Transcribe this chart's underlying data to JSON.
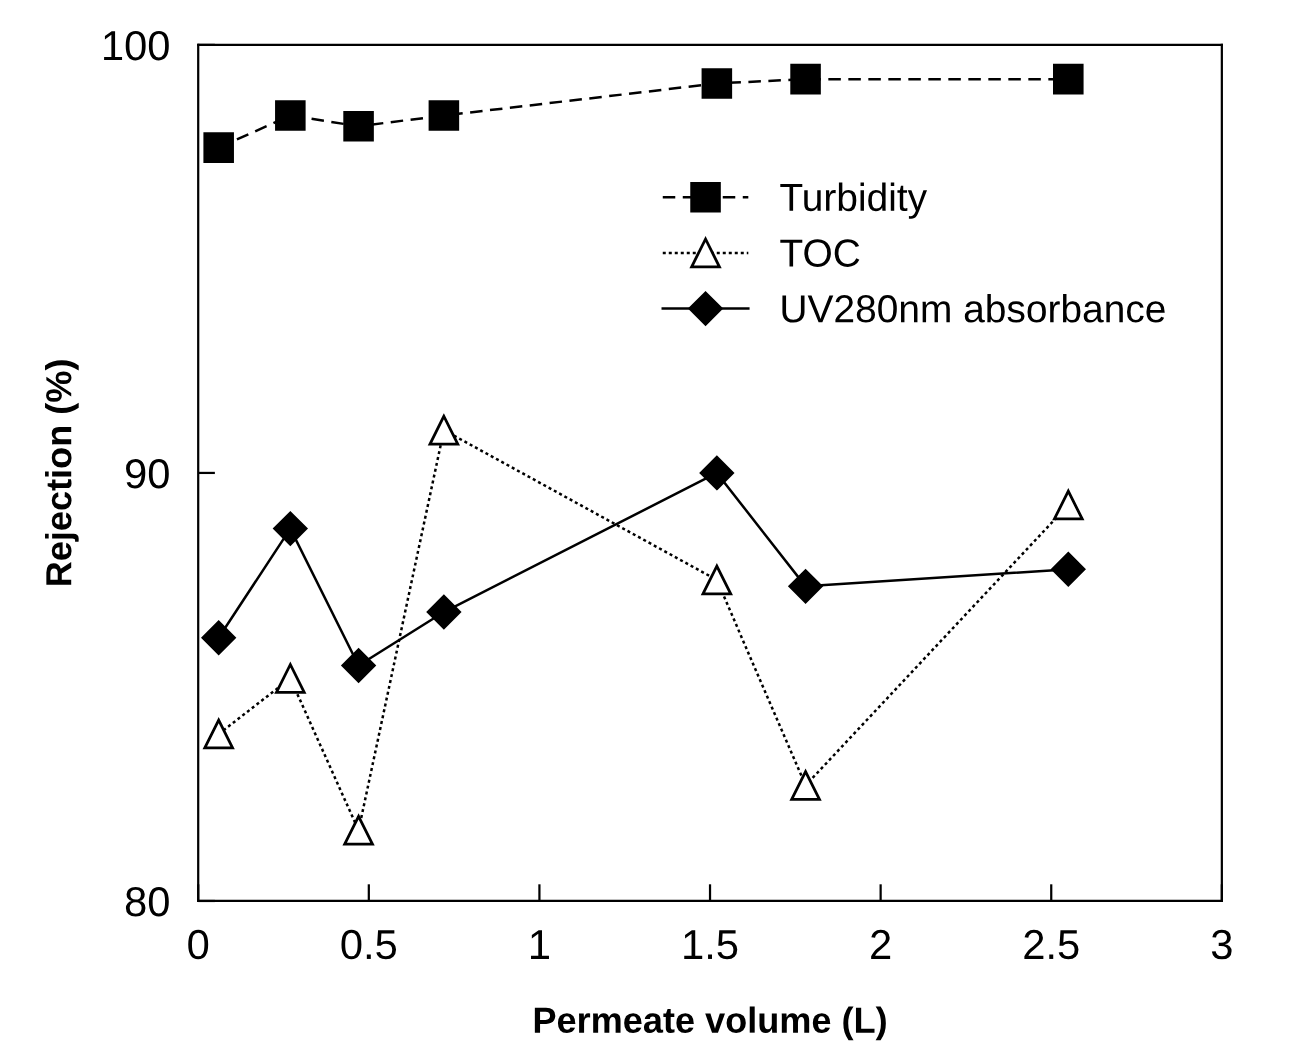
{
  "chart_data": {
    "type": "line",
    "xlabel": "Permeate volume (L)",
    "ylabel": "Rejection (%)",
    "x": [
      0.06,
      0.27,
      0.47,
      0.72,
      1.52,
      1.78,
      2.55
    ],
    "series": [
      {
        "name": "Turbidity",
        "color": "#000000",
        "values": [
          97.6,
          98.35,
          98.1,
          98.35,
          99.1,
          99.2,
          99.2
        ],
        "marker": "square",
        "line_style": "dashed"
      },
      {
        "name": "TOC",
        "color": "#000000",
        "values": [
          83.9,
          85.2,
          81.65,
          91.0,
          87.5,
          82.7,
          89.25
        ],
        "marker": "triangle",
        "line_style": "dotted"
      },
      {
        "name": "UV280nm absorbance",
        "color": "#000000",
        "values": [
          86.15,
          88.7,
          85.5,
          86.75,
          90.0,
          87.35,
          87.75
        ],
        "marker": "diamond",
        "line_style": "solid"
      }
    ],
    "xlim": [
      0,
      3
    ],
    "ylim": [
      80,
      100
    ],
    "xticks": [
      0,
      0.5,
      1,
      1.5,
      2,
      2.5,
      3
    ],
    "yticks": [
      80,
      90,
      100
    ],
    "grid": false,
    "legend": "top right"
  }
}
